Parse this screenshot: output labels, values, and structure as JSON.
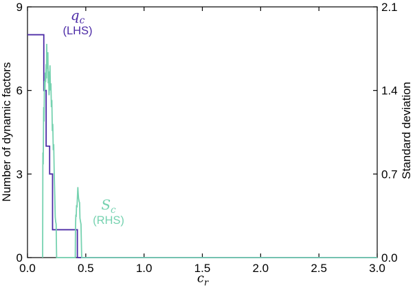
{
  "figure": {
    "background": "#ffffff",
    "frame_color": "#000000"
  },
  "chart_data": {
    "type": "line",
    "title": "",
    "grid": false,
    "legend_position": "inline-annotations",
    "x_axis": {
      "label_main": "c",
      "label_sub": "r",
      "range": [
        0.0,
        3.0
      ],
      "ticks": [
        {
          "v": 0.0,
          "label": "0.0"
        },
        {
          "v": 0.5,
          "label": "0.5"
        },
        {
          "v": 1.0,
          "label": "1.0"
        },
        {
          "v": 1.5,
          "label": "1.5"
        },
        {
          "v": 2.0,
          "label": "2.0"
        },
        {
          "v": 2.5,
          "label": "2.5"
        },
        {
          "v": 3.0,
          "label": "3.0"
        }
      ]
    },
    "left_axis": {
      "label": "Number of dynamic factors",
      "range": [
        0,
        9
      ],
      "ticks": [
        {
          "v": 0,
          "label": "0"
        },
        {
          "v": 3,
          "label": "3"
        },
        {
          "v": 6,
          "label": "6"
        },
        {
          "v": 9,
          "label": "9"
        }
      ]
    },
    "right_axis": {
      "label": "Standard deviation",
      "range": [
        0.0,
        2.1
      ],
      "ticks": [
        {
          "v": 0.0,
          "label": "0.0"
        },
        {
          "v": 0.7,
          "label": "0.7"
        },
        {
          "v": 1.4,
          "label": "1.4"
        },
        {
          "v": 2.1,
          "label": "2.1"
        }
      ]
    },
    "series": [
      {
        "name": "q_c",
        "axis": "left",
        "color": "#4c2ba6",
        "style": "step",
        "points": [
          [
            0.0,
            8
          ],
          [
            0.14,
            8
          ],
          [
            0.14,
            6
          ],
          [
            0.16,
            6
          ],
          [
            0.16,
            4
          ],
          [
            0.19,
            4
          ],
          [
            0.19,
            3
          ],
          [
            0.215,
            3
          ],
          [
            0.215,
            1
          ],
          [
            0.428,
            1
          ],
          [
            0.428,
            0
          ],
          [
            3.0,
            0
          ]
        ]
      },
      {
        "name": "S_c",
        "axis": "right",
        "color": "#76d2b0",
        "style": "noisy",
        "points": [
          [
            0.13,
            0.0
          ],
          [
            0.132,
            0.88
          ],
          [
            0.135,
            0.78
          ],
          [
            0.139,
            1.26
          ],
          [
            0.142,
            1.14
          ],
          [
            0.146,
            1.48
          ],
          [
            0.15,
            1.4
          ],
          [
            0.153,
            1.55
          ],
          [
            0.156,
            1.47
          ],
          [
            0.16,
            1.62
          ],
          [
            0.163,
            1.5
          ],
          [
            0.165,
            1.79
          ],
          [
            0.168,
            1.58
          ],
          [
            0.171,
            1.7
          ],
          [
            0.175,
            1.72
          ],
          [
            0.178,
            1.46
          ],
          [
            0.181,
            1.56
          ],
          [
            0.185,
            1.36
          ],
          [
            0.189,
            1.46
          ],
          [
            0.193,
            1.61
          ],
          [
            0.197,
            1.4
          ],
          [
            0.201,
            1.46
          ],
          [
            0.205,
            1.26
          ],
          [
            0.209,
            1.32
          ],
          [
            0.213,
            1.06
          ],
          [
            0.217,
            1.12
          ],
          [
            0.221,
            0.9
          ],
          [
            0.225,
            0.95
          ],
          [
            0.229,
            0.72
          ],
          [
            0.234,
            0.52
          ],
          [
            0.238,
            0.34
          ],
          [
            0.242,
            0.3
          ],
          [
            0.246,
            0.28
          ],
          [
            0.248,
            0.12
          ],
          [
            0.25,
            0.0
          ],
          [
            0.41,
            0.0
          ],
          [
            0.412,
            0.26
          ],
          [
            0.415,
            0.36
          ],
          [
            0.418,
            0.34
          ],
          [
            0.421,
            0.44
          ],
          [
            0.425,
            0.42
          ],
          [
            0.428,
            0.5
          ],
          [
            0.432,
            0.59
          ],
          [
            0.435,
            0.54
          ],
          [
            0.438,
            0.5
          ],
          [
            0.443,
            0.47
          ],
          [
            0.447,
            0.46
          ],
          [
            0.45,
            0.33
          ],
          [
            0.455,
            0.3
          ],
          [
            0.459,
            0.28
          ],
          [
            0.462,
            0.14
          ],
          [
            0.465,
            0.0
          ],
          [
            3.0,
            0.0
          ]
        ]
      }
    ],
    "annotations": [
      {
        "main": "q",
        "sub": "c",
        "line2": "(LHS)",
        "series": 0
      },
      {
        "main": "S",
        "sub": "c",
        "line2": "(RHS)",
        "series": 1
      }
    ]
  }
}
